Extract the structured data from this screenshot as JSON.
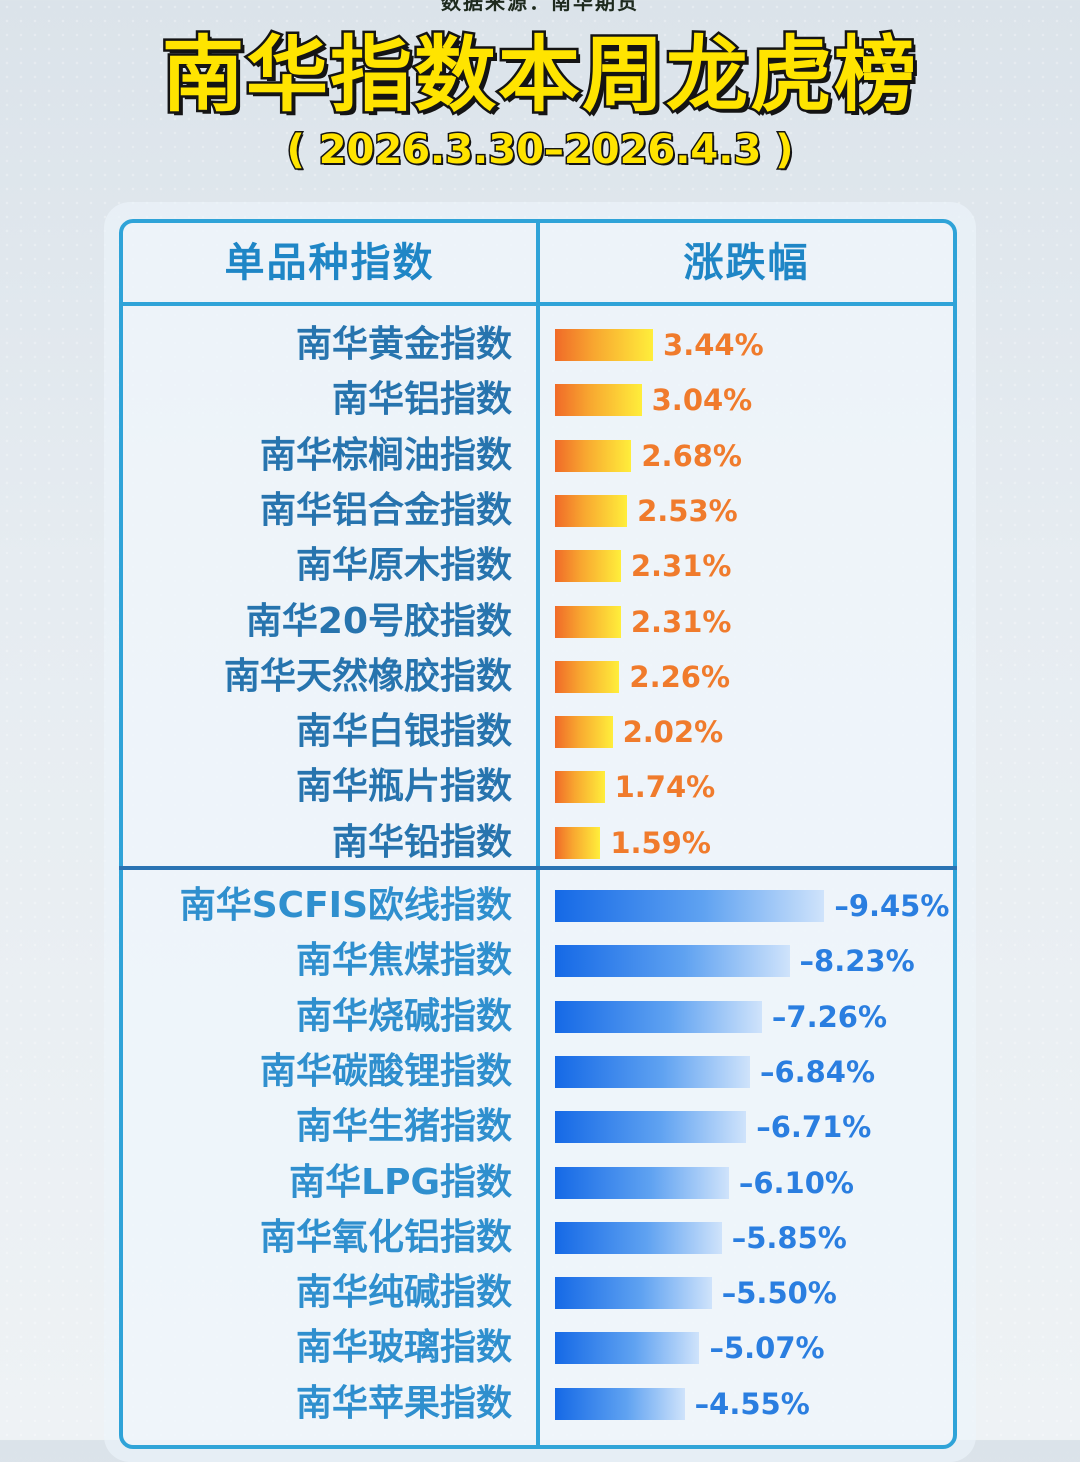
{
  "header": {
    "source": "数据来源：南华期货",
    "title": "南华指数本周龙虎榜",
    "date_range": "( 2026.3.30–2026.4.3 )"
  },
  "table": {
    "col_name": "单品种指数",
    "col_change": "涨跌幅"
  },
  "colors": {
    "gain": "#f07b2c",
    "loss": "#2a7ee0",
    "border": "#2fa3d8",
    "title_yellow": "#ffe400"
  },
  "chart_data": {
    "type": "bar",
    "orientation": "horizontal",
    "unit": "%",
    "gainers": [
      {
        "name": "南华黄金指数",
        "value": 3.44,
        "label": "3.44%"
      },
      {
        "name": "南华铝指数",
        "value": 3.04,
        "label": "3.04%"
      },
      {
        "name": "南华棕榈油指数",
        "value": 2.68,
        "label": "2.68%"
      },
      {
        "name": "南华铝合金指数",
        "value": 2.53,
        "label": "2.53%"
      },
      {
        "name": "南华原木指数",
        "value": 2.31,
        "label": "2.31%"
      },
      {
        "name": "南华20号胶指数",
        "value": 2.31,
        "label": "2.31%"
      },
      {
        "name": "南华天然橡胶指数",
        "value": 2.26,
        "label": "2.26%"
      },
      {
        "name": "南华白银指数",
        "value": 2.02,
        "label": "2.02%"
      },
      {
        "name": "南华瓶片指数",
        "value": 1.74,
        "label": "1.74%"
      },
      {
        "name": "南华铅指数",
        "value": 1.59,
        "label": "1.59%"
      }
    ],
    "losers": [
      {
        "name": "南华SCFIS欧线指数",
        "value": -9.45,
        "label": "–9.45%"
      },
      {
        "name": "南华焦煤指数",
        "value": -8.23,
        "label": "–8.23%"
      },
      {
        "name": "南华烧碱指数",
        "value": -7.26,
        "label": "–7.26%"
      },
      {
        "name": "南华碳酸锂指数",
        "value": -6.84,
        "label": "–6.84%"
      },
      {
        "name": "南华生猪指数",
        "value": -6.71,
        "label": "–6.71%"
      },
      {
        "name": "南华LPG指数",
        "value": -6.1,
        "label": "–6.10%"
      },
      {
        "name": "南华氧化铝指数",
        "value": -5.85,
        "label": "–5.85%"
      },
      {
        "name": "南华纯碱指数",
        "value": -5.5,
        "label": "–5.50%"
      },
      {
        "name": "南华玻璃指数",
        "value": -5.07,
        "label": "–5.07%"
      },
      {
        "name": "南华苹果指数",
        "value": -4.55,
        "label": "–4.55%"
      }
    ]
  }
}
